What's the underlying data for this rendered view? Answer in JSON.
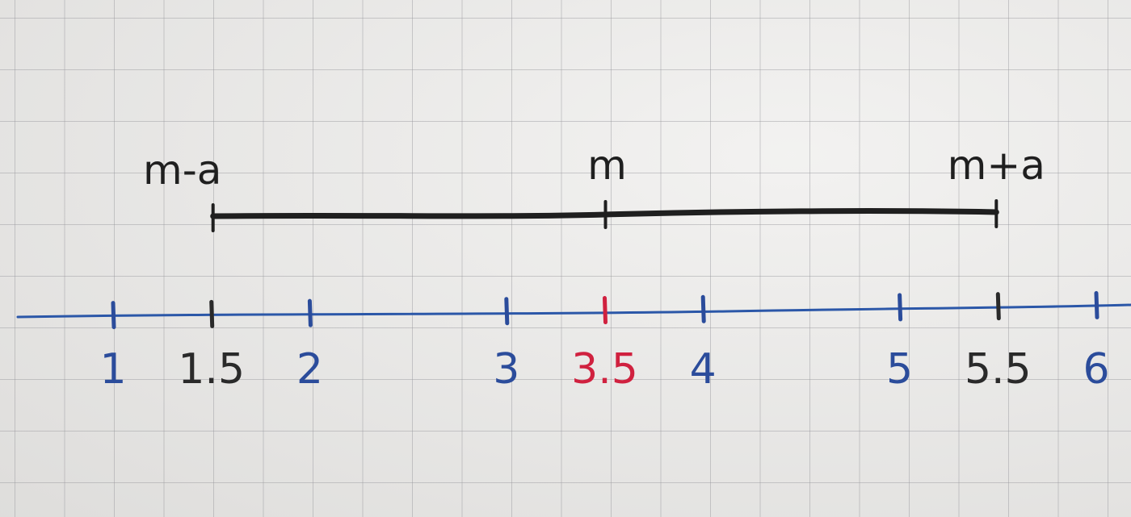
{
  "interval": {
    "left_label": "m-a",
    "mid_label": "m",
    "right_label": "m+a",
    "left_value": 1.5,
    "mid_value": 3.5,
    "right_value": 5.5
  },
  "number_line": {
    "ticks": [
      {
        "value": 1,
        "label": "1",
        "color": "#2b4c9b"
      },
      {
        "value": 1.5,
        "label": "1.5",
        "color": "#2a2a2a"
      },
      {
        "value": 2,
        "label": "2",
        "color": "#2b4c9b"
      },
      {
        "value": 3,
        "label": "3",
        "color": "#2b4c9b"
      },
      {
        "value": 3.5,
        "label": "3.5",
        "color": "#d0213f"
      },
      {
        "value": 4,
        "label": "4",
        "color": "#2b4c9b"
      },
      {
        "value": 5,
        "label": "5",
        "color": "#2b4c9b"
      },
      {
        "value": 5.5,
        "label": "5.5",
        "color": "#2a2a2a"
      },
      {
        "value": 6,
        "label": "6",
        "color": "#2b4c9b"
      }
    ],
    "line_color": "#2b57a8",
    "interval_color": "#1f1f1f"
  }
}
